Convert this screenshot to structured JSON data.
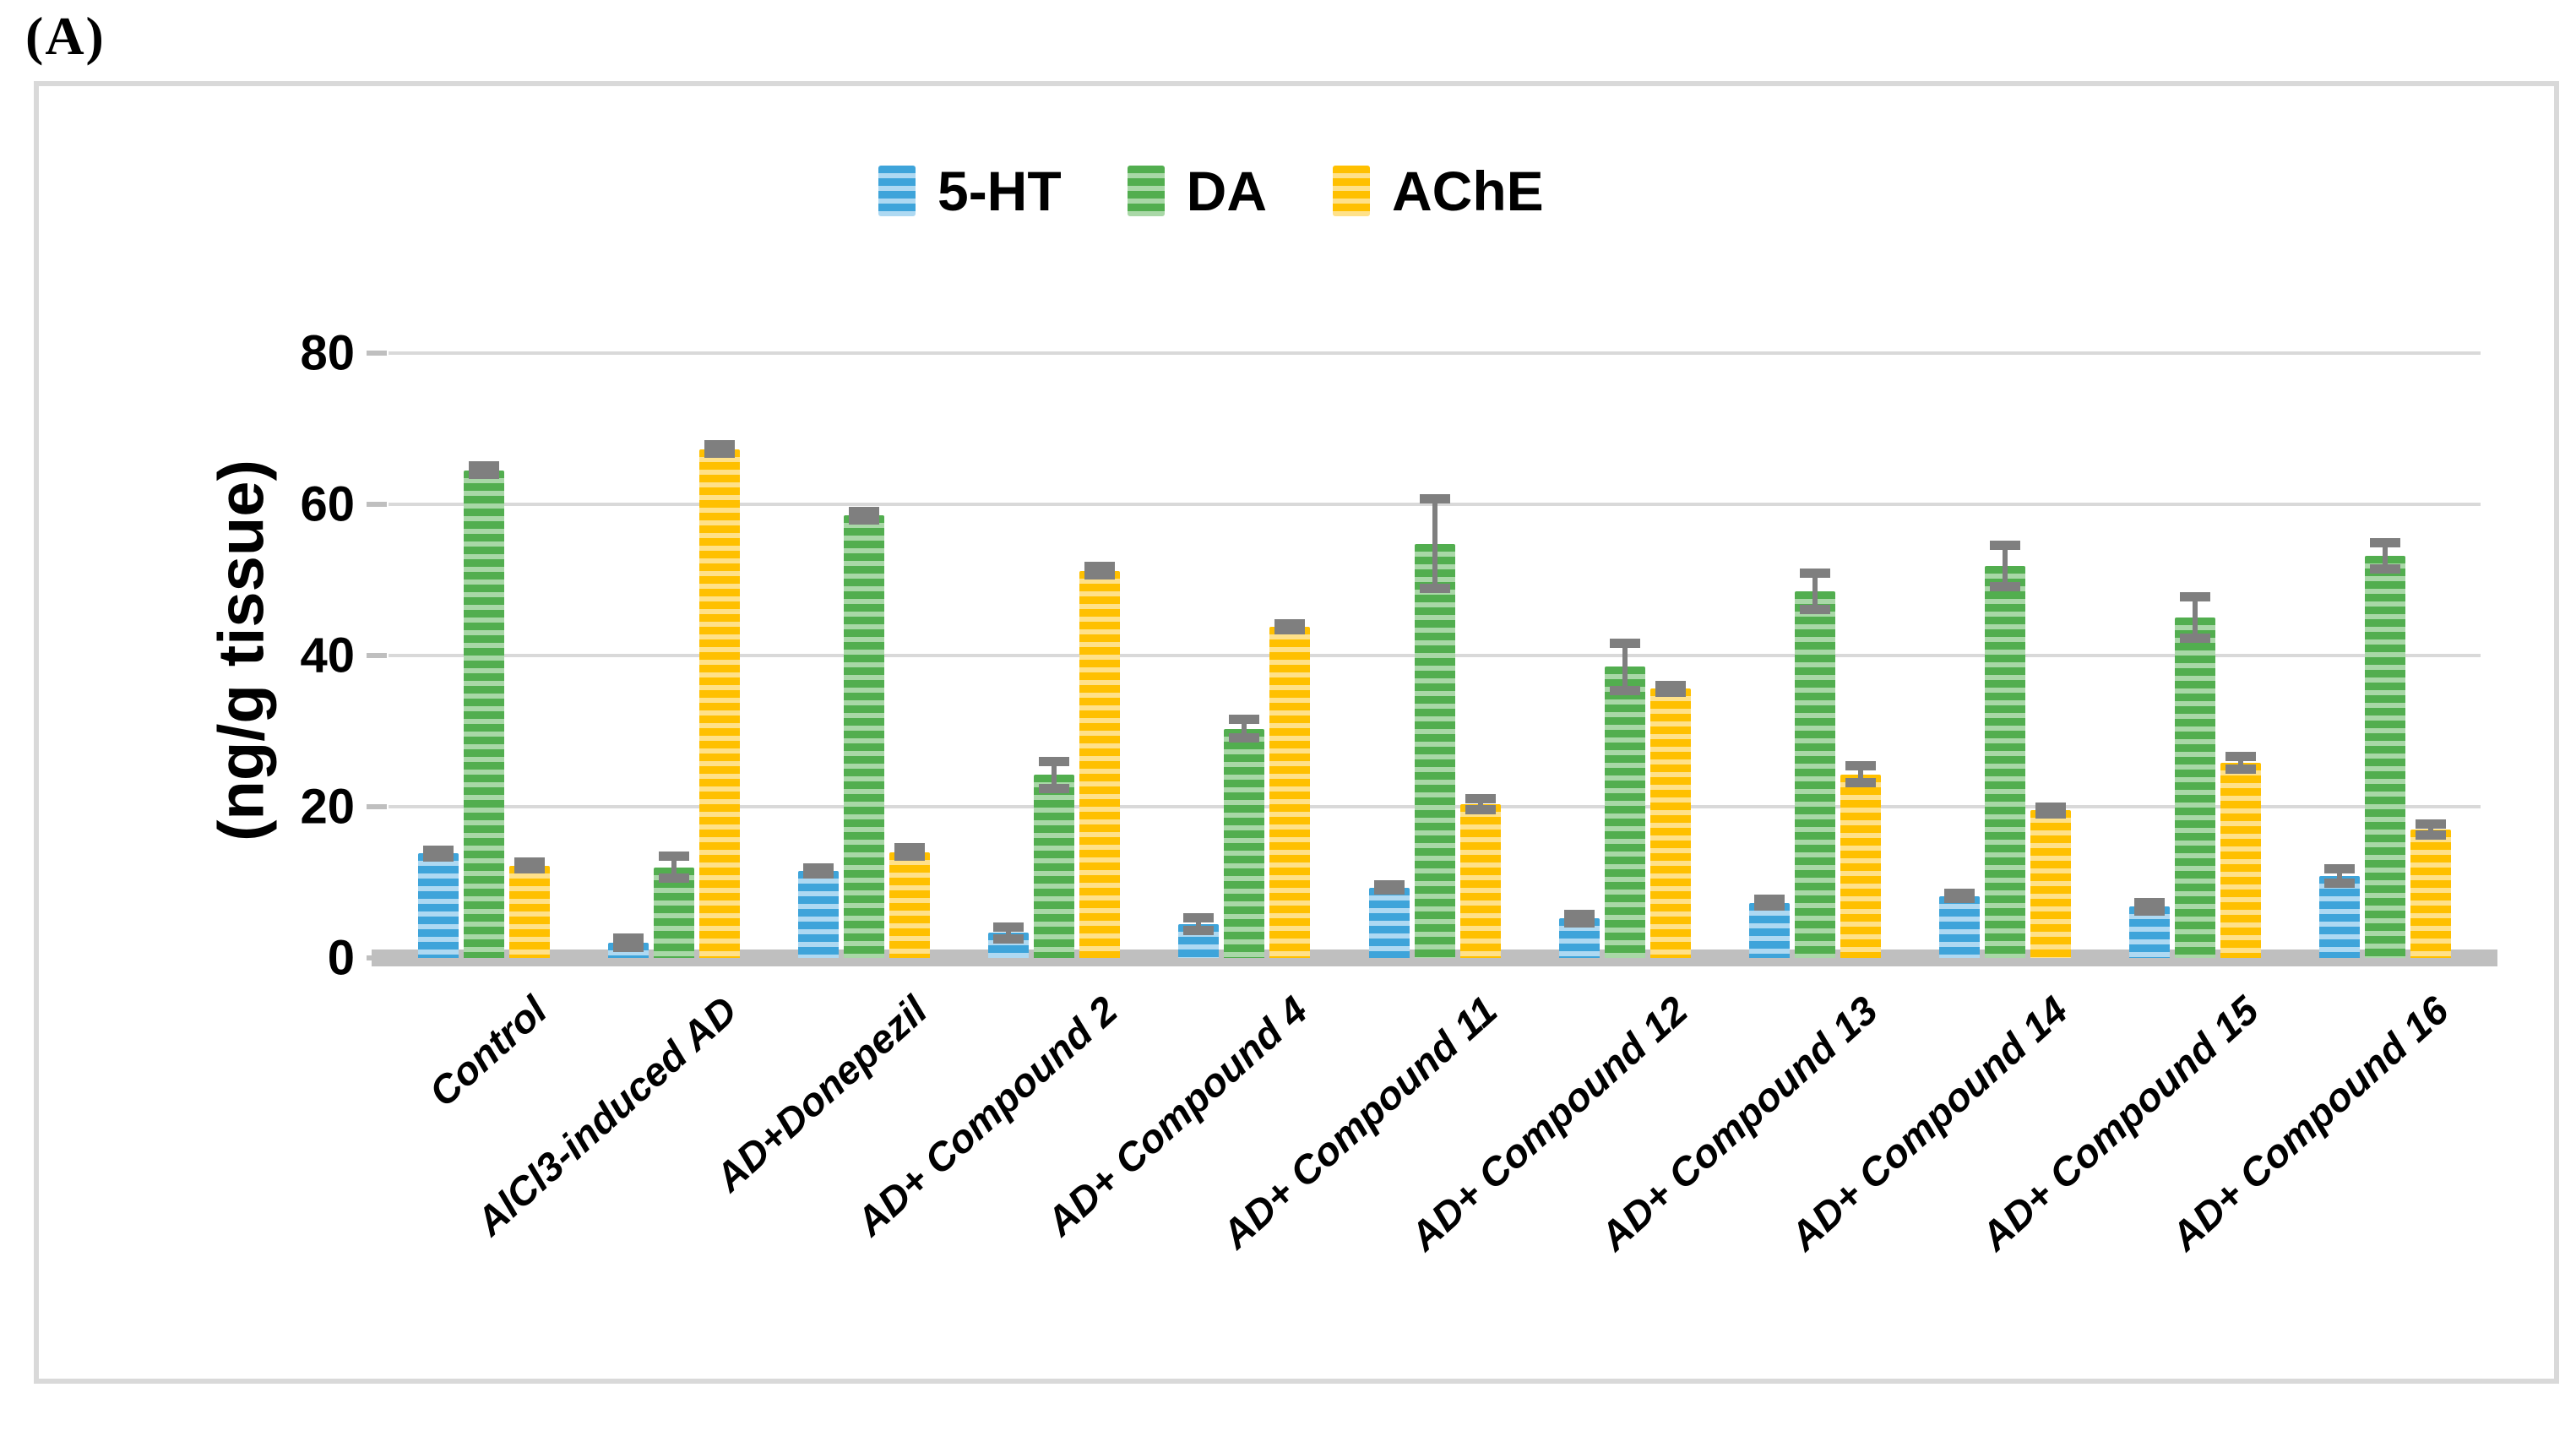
{
  "panel_label": "(A)",
  "y_axis": {
    "title": "(ng/g tissue)",
    "ticks": [
      0,
      20,
      40,
      60,
      80
    ],
    "max": 80
  },
  "colors": {
    "grid": "#d9d9d9",
    "axis_band": "#bfbfbf",
    "error_bar": "#7f7f7f",
    "figure_border": "#d9d9d9"
  },
  "chart_data": {
    "type": "bar",
    "title": "",
    "xlabel": "",
    "ylabel": "(ng/g tissue)",
    "ylim": [
      0,
      80
    ],
    "grid": true,
    "legend_position": "top-center",
    "categories": [
      "Control",
      "AlCl3-induced AD",
      "AD+Donepezil",
      "AD+ Compound 2",
      "AD+ Compound 4",
      "AD+ Compound 11",
      "AD+ Compound 12",
      "AD+ Compound 13",
      "AD+ Compound 14",
      "AD+ Compound 15",
      "AD+ Compound 16"
    ],
    "series": [
      {
        "name": "5-HT",
        "color": "#3ea4da",
        "color_light": "#aed9f2",
        "values": [
          13.8,
          2.0,
          11.5,
          3.3,
          4.5,
          9.3,
          5.2,
          7.3,
          8.2,
          6.8,
          10.8
        ],
        "errors": [
          0.5,
          0.7,
          0.4,
          0.8,
          0.9,
          0.4,
          0.6,
          0.5,
          0.4,
          0.6,
          1.0
        ]
      },
      {
        "name": "DA",
        "color": "#52ae4f",
        "color_light": "#a9d8a7",
        "values": [
          64.5,
          12.0,
          58.5,
          24.2,
          30.3,
          54.8,
          38.5,
          48.5,
          51.8,
          45.0,
          53.2
        ],
        "errors": [
          0.6,
          1.5,
          0.6,
          1.8,
          1.3,
          6.0,
          3.2,
          2.5,
          2.8,
          2.8,
          1.8
        ]
      },
      {
        "name": "AChE",
        "color": "#ffc000",
        "color_light": "#ffe189",
        "values": [
          12.2,
          67.3,
          14.0,
          51.2,
          43.8,
          20.3,
          35.6,
          24.3,
          19.5,
          25.8,
          17.0
        ],
        "errors": [
          0.5,
          0.6,
          0.6,
          0.6,
          0.5,
          0.8,
          0.5,
          1.2,
          0.5,
          0.9,
          0.8
        ]
      }
    ]
  }
}
